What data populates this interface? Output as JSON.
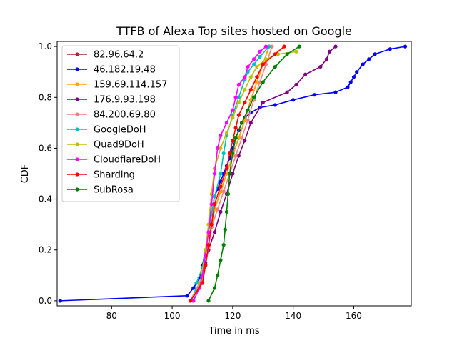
{
  "chart_data": {
    "type": "line",
    "title": "TTFB of Alexa Top sites hosted on Google",
    "xlabel": "Time in ms",
    "ylabel": "CDF",
    "xlim": [
      62,
      179
    ],
    "ylim": [
      -0.02,
      1.02
    ],
    "xticks": [
      80,
      100,
      120,
      140,
      160
    ],
    "yticks": [
      0.0,
      0.2,
      0.4,
      0.6,
      0.8,
      1.0
    ],
    "grid": false,
    "legend_position": "upper-left",
    "series": [
      {
        "name": "82.96.64.2",
        "color": "#a52a2a",
        "x": [
          106,
          110,
          111,
          112,
          113,
          114,
          116,
          118,
          120,
          122,
          124,
          126,
          128,
          130,
          132
        ],
        "y": [
          0.0,
          0.07,
          0.14,
          0.21,
          0.29,
          0.36,
          0.43,
          0.5,
          0.57,
          0.64,
          0.71,
          0.79,
          0.86,
          0.93,
          1.0
        ]
      },
      {
        "name": "46.182.19.48",
        "color": "#0000ff",
        "x": [
          63,
          105,
          107,
          109,
          110,
          111,
          112,
          113,
          114,
          115,
          116,
          117,
          118,
          119,
          120,
          121,
          122,
          123,
          124,
          126,
          129,
          134,
          140,
          147,
          154,
          158,
          159,
          160,
          161,
          163,
          165,
          167,
          172,
          177
        ],
        "y": [
          0.0,
          0.02,
          0.05,
          0.09,
          0.14,
          0.2,
          0.27,
          0.34,
          0.41,
          0.44,
          0.47,
          0.5,
          0.53,
          0.56,
          0.6,
          0.64,
          0.67,
          0.7,
          0.72,
          0.74,
          0.76,
          0.77,
          0.79,
          0.81,
          0.82,
          0.84,
          0.86,
          0.88,
          0.9,
          0.93,
          0.95,
          0.97,
          0.99,
          1.0
        ]
      },
      {
        "name": "159.69.114.157",
        "color": "#ffa500",
        "x": [
          106,
          109,
          111,
          112,
          113,
          114,
          116,
          118,
          120,
          122,
          124,
          126,
          128,
          130,
          132
        ],
        "y": [
          0.0,
          0.07,
          0.14,
          0.21,
          0.29,
          0.36,
          0.43,
          0.5,
          0.57,
          0.64,
          0.71,
          0.79,
          0.86,
          0.93,
          1.0
        ]
      },
      {
        "name": "176.9.93.198",
        "color": "#800080",
        "x": [
          107,
          109,
          110,
          111,
          112,
          114,
          116,
          118,
          120,
          122,
          124,
          126,
          130,
          138,
          141,
          144,
          149,
          151,
          152,
          154
        ],
        "y": [
          0.0,
          0.05,
          0.1,
          0.15,
          0.2,
          0.27,
          0.35,
          0.42,
          0.5,
          0.57,
          0.63,
          0.7,
          0.78,
          0.82,
          0.85,
          0.89,
          0.92,
          0.95,
          0.98,
          1.0
        ]
      },
      {
        "name": "84.200.69.80",
        "color": "#f08080",
        "x": [
          106,
          109,
          111,
          112,
          113,
          115,
          117,
          119,
          121,
          123,
          125,
          127,
          129,
          131,
          133
        ],
        "y": [
          0.0,
          0.07,
          0.14,
          0.21,
          0.29,
          0.36,
          0.43,
          0.5,
          0.57,
          0.64,
          0.71,
          0.79,
          0.86,
          0.93,
          1.0
        ]
      },
      {
        "name": "GoogleDoH",
        "color": "#00bfbf",
        "x": [
          107,
          108,
          110,
          111,
          112,
          113,
          114,
          116,
          117,
          118,
          120,
          122,
          124,
          125,
          127,
          129,
          132
        ],
        "y": [
          0.0,
          0.07,
          0.13,
          0.2,
          0.27,
          0.34,
          0.41,
          0.5,
          0.58,
          0.65,
          0.73,
          0.8,
          0.87,
          0.9,
          0.93,
          0.96,
          1.0
        ]
      },
      {
        "name": "Quad9DoH",
        "color": "#bfbf00",
        "x": [
          106,
          109,
          110,
          111,
          112,
          113,
          114,
          116,
          118,
          120,
          122,
          124,
          126,
          128,
          131,
          135,
          141
        ],
        "y": [
          0.0,
          0.06,
          0.12,
          0.2,
          0.3,
          0.42,
          0.52,
          0.6,
          0.66,
          0.72,
          0.78,
          0.83,
          0.88,
          0.92,
          0.95,
          0.97,
          0.98
        ]
      },
      {
        "name": "CloudflareDoH",
        "color": "#ff00ff",
        "x": [
          107,
          109,
          110,
          111,
          112,
          113,
          114,
          115,
          116,
          118,
          120,
          121,
          122,
          124,
          125,
          127,
          129,
          131
        ],
        "y": [
          0.0,
          0.05,
          0.1,
          0.18,
          0.27,
          0.38,
          0.5,
          0.6,
          0.65,
          0.7,
          0.75,
          0.8,
          0.85,
          0.88,
          0.92,
          0.95,
          0.98,
          1.0
        ]
      },
      {
        "name": "Sharding",
        "color": "#ff0000",
        "x": [
          106,
          110,
          111,
          112,
          113,
          114,
          116,
          118,
          119,
          120,
          121,
          122,
          124,
          126,
          128,
          130,
          134,
          137
        ],
        "y": [
          0.0,
          0.07,
          0.14,
          0.22,
          0.3,
          0.38,
          0.45,
          0.52,
          0.58,
          0.63,
          0.68,
          0.73,
          0.78,
          0.83,
          0.88,
          0.93,
          0.97,
          1.0
        ]
      },
      {
        "name": "SubRosa",
        "color": "#008000",
        "x": [
          112,
          114,
          115,
          116,
          117,
          117.5,
          118,
          118.5,
          119,
          120,
          121,
          123,
          125,
          127,
          130,
          134,
          138,
          142
        ],
        "y": [
          0.0,
          0.05,
          0.1,
          0.16,
          0.22,
          0.28,
          0.35,
          0.42,
          0.5,
          0.58,
          0.64,
          0.7,
          0.75,
          0.8,
          0.86,
          0.92,
          0.97,
          1.0
        ]
      }
    ]
  }
}
